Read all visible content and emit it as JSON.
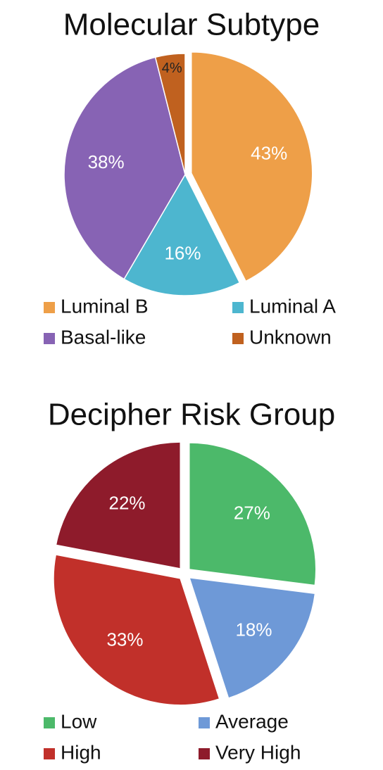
{
  "chart_data": [
    {
      "type": "pie",
      "title": "Molecular Subtype",
      "categories": [
        "Luminal B",
        "Luminal A",
        "Basal-like",
        "Unknown"
      ],
      "values": [
        43,
        16,
        38,
        4
      ],
      "value_labels": [
        "43%",
        "16%",
        "38%",
        "4%"
      ],
      "colors": [
        "#ee9f48",
        "#4db6cf",
        "#8763b4",
        "#c0611f"
      ]
    },
    {
      "type": "pie",
      "title": "Decipher Risk Group",
      "categories": [
        "Low",
        "Average",
        "High",
        "Very High"
      ],
      "values": [
        27,
        18,
        33,
        22
      ],
      "value_labels": [
        "27%",
        "18%",
        "33%",
        "22%"
      ],
      "colors": [
        "#4cb96a",
        "#6e99d7",
        "#c1302a",
        "#8e1b2b"
      ]
    }
  ]
}
